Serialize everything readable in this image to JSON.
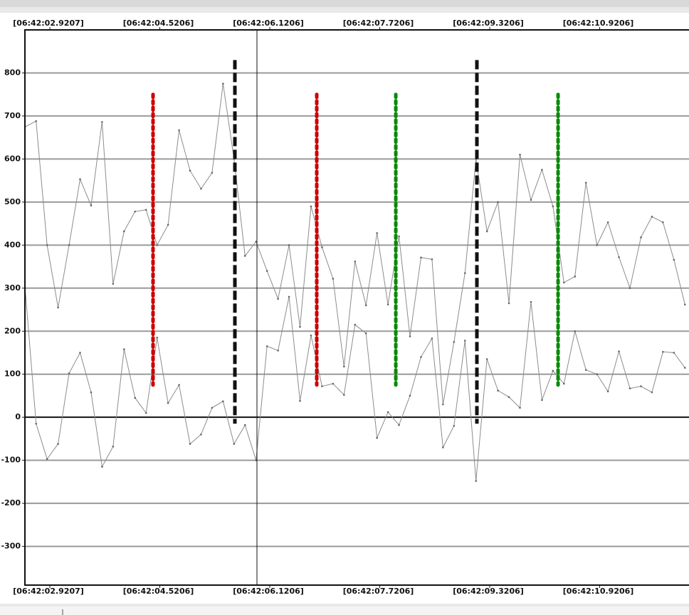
{
  "chart_data": {
    "type": "line",
    "x": [
      2.5607,
      2.7207,
      2.8807,
      3.0407,
      3.2007,
      3.3607,
      3.5207,
      3.6807,
      3.8407,
      4.0007,
      4.1607,
      4.3207,
      4.4807,
      4.6407,
      4.8007,
      4.9607,
      5.1207,
      5.2807,
      5.4407,
      5.6007,
      5.7607,
      5.9207,
      6.0807,
      6.2407,
      6.4007,
      6.5607,
      6.7207,
      6.8807,
      7.0407,
      7.2007,
      7.3607,
      7.5207,
      7.6807,
      7.8407,
      8.0007,
      8.1607,
      8.3207,
      8.4807,
      8.6407,
      8.8007,
      8.9607,
      9.1207,
      9.2807,
      9.4407,
      9.6007,
      9.7607,
      9.9207,
      10.0807,
      10.2407,
      10.4007,
      10.5607,
      10.7207,
      10.8807,
      11.0407,
      11.2007,
      11.3607,
      11.5207,
      11.6807,
      11.8407,
      12.0007,
      12.1607
    ],
    "series": [
      {
        "color": "#8c8c8c",
        "values": [
          675,
          688,
          400,
          255,
          400,
          553,
          492,
          686,
          310,
          432,
          478,
          482,
          400,
          447,
          667,
          573,
          531,
          568,
          775,
          600,
          375,
          408,
          340,
          275,
          400,
          210,
          490,
          395,
          322,
          118,
          362,
          260,
          428,
          262,
          420,
          188,
          371,
          367,
          30,
          175,
          335,
          600,
          432,
          500,
          265,
          610,
          505,
          575,
          490,
          313,
          327,
          545,
          400,
          453,
          372,
          300,
          418,
          466,
          453,
          366,
          262
        ]
      },
      {
        "color": "#8c8c8c",
        "values": [
          300,
          -15,
          -97,
          -62,
          102,
          150,
          58,
          -115,
          -68,
          158,
          45,
          10,
          185,
          33,
          75,
          -62,
          -40,
          22,
          37,
          -62,
          -18,
          -100,
          165,
          155,
          280,
          38,
          190,
          72,
          78,
          52,
          215,
          195,
          -48,
          12,
          -18,
          50,
          140,
          183,
          -70,
          -20,
          178,
          -148,
          135,
          62,
          47,
          22,
          268,
          40,
          108,
          78,
          200,
          110,
          100,
          60,
          153,
          67,
          72,
          58,
          152,
          150,
          115
        ]
      }
    ],
    "markers": [
      {
        "x": 4.422,
        "y": [
          75,
          750
        ],
        "color": "#cc0000",
        "style": "dotted"
      },
      {
        "x": 5.613,
        "y": [
          -15,
          830
        ],
        "color": "#111111",
        "style": "dashed"
      },
      {
        "x": 6.804,
        "y": [
          75,
          750
        ],
        "color": "#cc0000",
        "style": "dotted"
      },
      {
        "x": 7.954,
        "y": [
          75,
          750
        ],
        "color": "#0a8a0a",
        "style": "dotted"
      },
      {
        "x": 9.134,
        "y": [
          -15,
          830
        ],
        "color": "#111111",
        "style": "dashed"
      },
      {
        "x": 10.315,
        "y": [
          75,
          750
        ],
        "color": "#0a8a0a",
        "style": "dotted"
      }
    ],
    "cursor_x": 5.934,
    "xlim": [
      2.558,
      12.22
    ],
    "xticks": [
      {
        "value": 2.9207,
        "label": "[06:42:02.9207]"
      },
      {
        "value": 4.5206,
        "label": "[06:42:04.5206]"
      },
      {
        "value": 6.1206,
        "label": "[06:42:06.1206]"
      },
      {
        "value": 7.7206,
        "label": "[06:42:07.7206]"
      },
      {
        "value": 9.3206,
        "label": "[06:42:09.3206]"
      },
      {
        "value": 10.9206,
        "label": "[06:42:10.9206]"
      }
    ],
    "ylim": [
      -390,
      900
    ],
    "yticks": [
      -300,
      -200,
      -100,
      0,
      100,
      200,
      300,
      400,
      500,
      600,
      700,
      800
    ],
    "grid": true
  }
}
